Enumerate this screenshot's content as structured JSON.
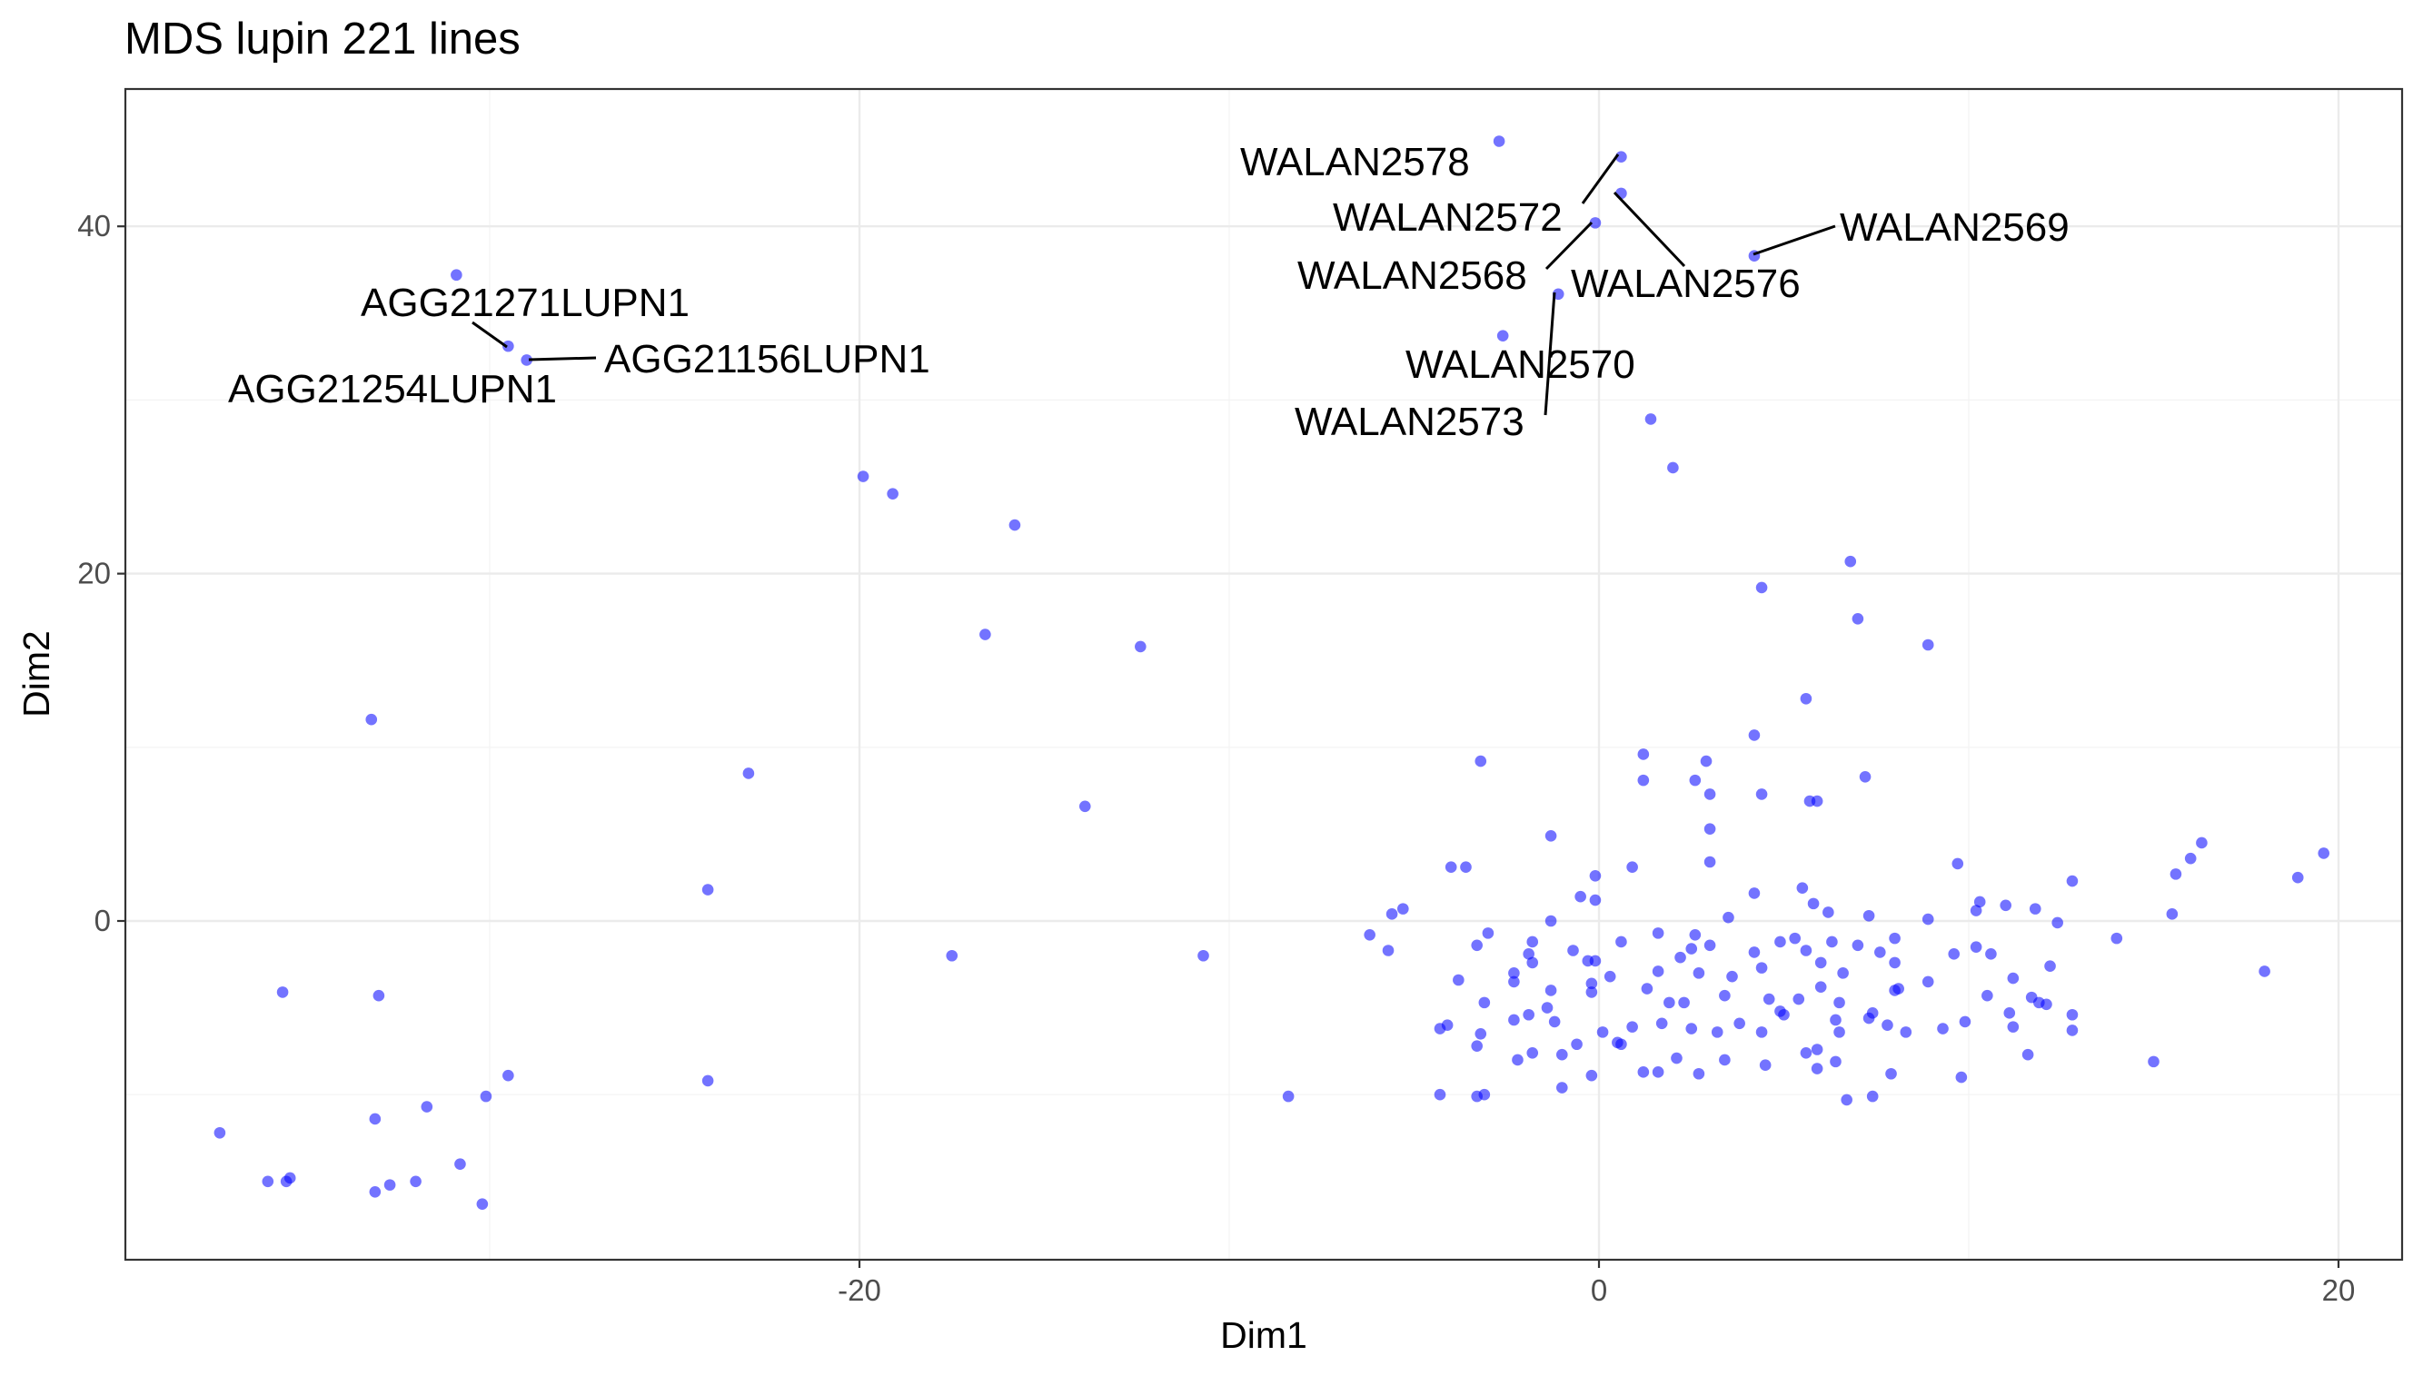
{
  "chart_data": {
    "type": "scatter",
    "title": "MDS lupin 221 lines",
    "xlabel": "Dim1",
    "ylabel": "Dim2",
    "xlim": [
      -39.7,
      21.8
    ],
    "ylim": [
      -19.6,
      47.8
    ],
    "x_major_ticks": [
      -20,
      0,
      20
    ],
    "x_minor_ticks": [
      -30,
      -10,
      10
    ],
    "y_major_ticks": [
      0,
      20,
      40
    ],
    "y_minor_ticks": [
      -10,
      10,
      30
    ],
    "tick_labels": {
      "x": [
        "-20",
        "0",
        "20"
      ],
      "y": [
        "0",
        "20",
        "40"
      ]
    },
    "grid": true,
    "point_color": "#0000ff",
    "point_alpha": 0.55,
    "labeled_points": [
      {
        "label": "WALAN2578",
        "x": 0.6,
        "y": 44.0
      },
      {
        "label": "WALAN2572",
        "x": -0.1,
        "y": 40.2
      },
      {
        "label": "WALAN2568",
        "x": -1.1,
        "y": 36.1
      },
      {
        "label": "WALAN2576",
        "x": 0.6,
        "y": 41.9
      },
      {
        "label": "WALAN2569",
        "x": 4.2,
        "y": 38.3
      },
      {
        "label": "WALAN2570",
        "x": 2.0,
        "y": 26.1
      },
      {
        "label": "WALAN2573",
        "x": -2.6,
        "y": 33.7
      },
      {
        "label": "AGG21271LUPN1",
        "x": -29.5,
        "y": 33.1
      },
      {
        "label": "AGG21254LUPN1",
        "x": -29.0,
        "y": 32.3
      },
      {
        "label": "AGG21156LUPN1",
        "x": -29.0,
        "y": 32.3
      }
    ],
    "points": [
      {
        "x": -2.7,
        "y": 44.9
      },
      {
        "x": 0.6,
        "y": 44.0
      },
      {
        "x": 0.6,
        "y": 41.9
      },
      {
        "x": -0.1,
        "y": 40.2
      },
      {
        "x": 4.2,
        "y": 38.3
      },
      {
        "x": -1.1,
        "y": 36.1
      },
      {
        "x": -2.6,
        "y": 33.7
      },
      {
        "x": 1.4,
        "y": 28.9
      },
      {
        "x": 2.0,
        "y": 26.1
      },
      {
        "x": -30.9,
        "y": 37.2
      },
      {
        "x": -29.5,
        "y": 33.1
      },
      {
        "x": -29.0,
        "y": 32.3
      },
      {
        "x": -19.9,
        "y": 25.6
      },
      {
        "x": -19.1,
        "y": 24.6
      },
      {
        "x": -15.8,
        "y": 22.8
      },
      {
        "x": -16.6,
        "y": 16.5
      },
      {
        "x": -12.4,
        "y": 15.8
      },
      {
        "x": -33.2,
        "y": 11.6
      },
      {
        "x": -23.0,
        "y": 8.5
      },
      {
        "x": -13.9,
        "y": 6.6
      },
      {
        "x": -24.1,
        "y": 1.8
      },
      {
        "x": -17.5,
        "y": -2.0
      },
      {
        "x": -10.7,
        "y": -2.0
      },
      {
        "x": -24.1,
        "y": -9.2
      },
      {
        "x": -8.4,
        "y": -10.1
      },
      {
        "x": -35.6,
        "y": -4.1
      },
      {
        "x": -33.0,
        "y": -4.3
      },
      {
        "x": -29.5,
        "y": -8.9
      },
      {
        "x": -30.1,
        "y": -10.1
      },
      {
        "x": -31.7,
        "y": -10.7
      },
      {
        "x": -33.1,
        "y": -11.4
      },
      {
        "x": -37.3,
        "y": -12.2
      },
      {
        "x": -30.8,
        "y": -14.0
      },
      {
        "x": -36.0,
        "y": -15.0
      },
      {
        "x": -35.4,
        "y": -14.8
      },
      {
        "x": -35.5,
        "y": -15.0
      },
      {
        "x": -32.0,
        "y": -15.0
      },
      {
        "x": -32.7,
        "y": -15.2
      },
      {
        "x": -33.1,
        "y": -15.6
      },
      {
        "x": -30.2,
        "y": -16.3
      },
      {
        "x": 4.4,
        "y": 19.2
      },
      {
        "x": 6.8,
        "y": 20.7
      },
      {
        "x": 7.0,
        "y": 17.4
      },
      {
        "x": 8.9,
        "y": 15.9
      },
      {
        "x": 4.2,
        "y": 10.7
      },
      {
        "x": 5.6,
        "y": 12.8
      },
      {
        "x": 1.2,
        "y": 9.6
      },
      {
        "x": 2.9,
        "y": 9.2
      },
      {
        "x": -3.2,
        "y": 9.2
      },
      {
        "x": 1.2,
        "y": 8.1
      },
      {
        "x": 2.6,
        "y": 8.1
      },
      {
        "x": 7.2,
        "y": 8.3
      },
      {
        "x": 4.4,
        "y": 7.3
      },
      {
        "x": 3.0,
        "y": 7.3
      },
      {
        "x": 5.7,
        "y": 6.9
      },
      {
        "x": 5.9,
        "y": 6.9
      },
      {
        "x": 3.0,
        "y": 5.3
      },
      {
        "x": -1.3,
        "y": 4.9
      },
      {
        "x": 3.0,
        "y": 3.4
      },
      {
        "x": 0.9,
        "y": 3.1
      },
      {
        "x": -4.0,
        "y": 3.1
      },
      {
        "x": -3.6,
        "y": 3.1
      },
      {
        "x": -0.1,
        "y": 2.6
      },
      {
        "x": 9.7,
        "y": 3.3
      },
      {
        "x": 12.8,
        "y": 2.3
      },
      {
        "x": 15.6,
        "y": 2.7
      },
      {
        "x": 16.0,
        "y": 3.6
      },
      {
        "x": 16.3,
        "y": 4.5
      },
      {
        "x": 18.9,
        "y": 2.5
      },
      {
        "x": 19.6,
        "y": 3.9
      },
      {
        "x": 4.2,
        "y": 1.6
      },
      {
        "x": 5.5,
        "y": 1.9
      },
      {
        "x": 5.8,
        "y": 1.0
      },
      {
        "x": 6.2,
        "y": 0.5
      },
      {
        "x": 3.5,
        "y": 0.2
      },
      {
        "x": -0.5,
        "y": 1.4
      },
      {
        "x": -0.1,
        "y": 1.2
      },
      {
        "x": -5.3,
        "y": 0.7
      },
      {
        "x": -5.6,
        "y": 0.4
      },
      {
        "x": 7.3,
        "y": 0.3
      },
      {
        "x": 8.9,
        "y": 0.1
      },
      {
        "x": 10.3,
        "y": 1.1
      },
      {
        "x": 11.0,
        "y": 0.9
      },
      {
        "x": 11.8,
        "y": 0.7
      },
      {
        "x": 12.4,
        "y": -0.1
      },
      {
        "x": 10.2,
        "y": 0.6
      },
      {
        "x": 14.0,
        "y": -1.0
      },
      {
        "x": 15.5,
        "y": 0.4
      },
      {
        "x": 18.0,
        "y": -2.9
      },
      {
        "x": -1.3,
        "y": 0.0
      },
      {
        "x": -6.2,
        "y": -0.8
      },
      {
        "x": -5.7,
        "y": -1.7
      },
      {
        "x": -3.3,
        "y": -1.4
      },
      {
        "x": -3.0,
        "y": -0.7
      },
      {
        "x": -1.8,
        "y": -1.2
      },
      {
        "x": -1.8,
        "y": -2.4
      },
      {
        "x": -1.9,
        "y": -1.9
      },
      {
        "x": -0.7,
        "y": -1.7
      },
      {
        "x": -0.3,
        "y": -2.3
      },
      {
        "x": -0.1,
        "y": -2.3
      },
      {
        "x": 0.6,
        "y": -1.2
      },
      {
        "x": 1.6,
        "y": -0.7
      },
      {
        "x": 1.6,
        "y": -2.9
      },
      {
        "x": 2.2,
        "y": -2.1
      },
      {
        "x": 2.5,
        "y": -1.6
      },
      {
        "x": 2.6,
        "y": -0.8
      },
      {
        "x": 3.0,
        "y": -1.4
      },
      {
        "x": 3.6,
        "y": -3.2
      },
      {
        "x": 4.2,
        "y": -1.8
      },
      {
        "x": 4.4,
        "y": -2.7
      },
      {
        "x": 4.9,
        "y": -1.2
      },
      {
        "x": 5.3,
        "y": -1.0
      },
      {
        "x": 5.6,
        "y": -1.7
      },
      {
        "x": 6.0,
        "y": -2.4
      },
      {
        "x": 6.3,
        "y": -1.2
      },
      {
        "x": 6.6,
        "y": -3.0
      },
      {
        "x": 7.0,
        "y": -1.4
      },
      {
        "x": 7.6,
        "y": -1.8
      },
      {
        "x": 8.0,
        "y": -2.4
      },
      {
        "x": 8.1,
        "y": -3.9
      },
      {
        "x": 8.0,
        "y": -1.0
      },
      {
        "x": 9.6,
        "y": -1.9
      },
      {
        "x": 10.2,
        "y": -1.5
      },
      {
        "x": 10.6,
        "y": -1.9
      },
      {
        "x": 11.2,
        "y": -3.3
      },
      {
        "x": 12.2,
        "y": -2.6
      },
      {
        "x": -3.8,
        "y": -3.4
      },
      {
        "x": -3.1,
        "y": -4.7
      },
      {
        "x": -2.3,
        "y": -3.0
      },
      {
        "x": -2.3,
        "y": -3.5
      },
      {
        "x": -1.4,
        "y": -5.0
      },
      {
        "x": -1.3,
        "y": -4.0
      },
      {
        "x": -0.2,
        "y": -3.6
      },
      {
        "x": 0.3,
        "y": -3.2
      },
      {
        "x": -0.2,
        "y": -4.1
      },
      {
        "x": 1.3,
        "y": -3.9
      },
      {
        "x": 1.9,
        "y": -4.7
      },
      {
        "x": 2.3,
        "y": -4.7
      },
      {
        "x": 2.7,
        "y": -3.0
      },
      {
        "x": 3.4,
        "y": -4.3
      },
      {
        "x": 4.6,
        "y": -4.5
      },
      {
        "x": 4.9,
        "y": -5.2
      },
      {
        "x": 5.4,
        "y": -4.5
      },
      {
        "x": 6.0,
        "y": -3.8
      },
      {
        "x": 6.5,
        "y": -4.7
      },
      {
        "x": 7.4,
        "y": -5.3
      },
      {
        "x": 8.0,
        "y": -4.0
      },
      {
        "x": 8.9,
        "y": -3.5
      },
      {
        "x": 10.5,
        "y": -4.3
      },
      {
        "x": 11.1,
        "y": -5.3
      },
      {
        "x": 11.7,
        "y": -4.4
      },
      {
        "x": 11.9,
        "y": -4.7
      },
      {
        "x": 12.1,
        "y": -4.8
      },
      {
        "x": 12.8,
        "y": -5.4
      },
      {
        "x": -4.3,
        "y": -6.2
      },
      {
        "x": -4.1,
        "y": -6.0
      },
      {
        "x": -3.2,
        "y": -6.5
      },
      {
        "x": -2.3,
        "y": -5.7
      },
      {
        "x": -1.9,
        "y": -5.4
      },
      {
        "x": -1.2,
        "y": -5.8
      },
      {
        "x": -0.6,
        "y": -7.1
      },
      {
        "x": 0.1,
        "y": -6.4
      },
      {
        "x": 0.5,
        "y": -7.0
      },
      {
        "x": 0.9,
        "y": -6.1
      },
      {
        "x": 1.7,
        "y": -5.9
      },
      {
        "x": 2.5,
        "y": -6.2
      },
      {
        "x": 3.2,
        "y": -6.4
      },
      {
        "x": 3.8,
        "y": -5.9
      },
      {
        "x": 4.4,
        "y": -6.4
      },
      {
        "x": 5.0,
        "y": -5.4
      },
      {
        "x": 5.9,
        "y": -7.4
      },
      {
        "x": 6.4,
        "y": -5.7
      },
      {
        "x": 6.5,
        "y": -6.4
      },
      {
        "x": 7.3,
        "y": -5.6
      },
      {
        "x": 7.8,
        "y": -6.0
      },
      {
        "x": 8.3,
        "y": -6.4
      },
      {
        "x": 9.3,
        "y": -6.2
      },
      {
        "x": 9.9,
        "y": -5.8
      },
      {
        "x": 11.2,
        "y": -6.1
      },
      {
        "x": 12.8,
        "y": -6.3
      },
      {
        "x": -3.3,
        "y": -7.2
      },
      {
        "x": -2.2,
        "y": -8.0
      },
      {
        "x": -1.8,
        "y": -7.6
      },
      {
        "x": -1.0,
        "y": -7.7
      },
      {
        "x": 0.6,
        "y": -7.1
      },
      {
        "x": 1.2,
        "y": -8.7
      },
      {
        "x": 2.1,
        "y": -7.9
      },
      {
        "x": 3.4,
        "y": -8.0
      },
      {
        "x": 4.5,
        "y": -8.3
      },
      {
        "x": 5.6,
        "y": -7.6
      },
      {
        "x": 5.9,
        "y": -8.5
      },
      {
        "x": 6.4,
        "y": -8.1
      },
      {
        "x": 7.9,
        "y": -8.8
      },
      {
        "x": 9.8,
        "y": -9.0
      },
      {
        "x": 11.6,
        "y": -7.7
      },
      {
        "x": 15.0,
        "y": -8.1
      },
      {
        "x": -4.3,
        "y": -10.0
      },
      {
        "x": -3.3,
        "y": -10.1
      },
      {
        "x": -3.1,
        "y": -10.0
      },
      {
        "x": -1.0,
        "y": -9.6
      },
      {
        "x": -0.2,
        "y": -8.9
      },
      {
        "x": 1.6,
        "y": -8.7
      },
      {
        "x": 2.7,
        "y": -8.8
      },
      {
        "x": 6.7,
        "y": -10.3
      },
      {
        "x": 7.4,
        "y": -10.1
      }
    ]
  }
}
